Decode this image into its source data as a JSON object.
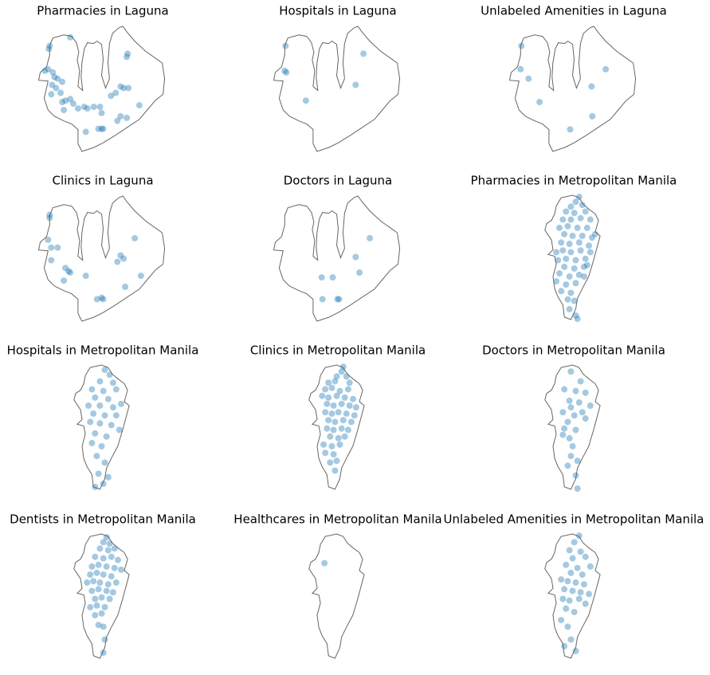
{
  "chart_data": [
    {
      "type": "scatter",
      "title": "Pharmacies in Laguna",
      "color": "#1f77b4",
      "xlim": [
        121.0,
        121.65
      ],
      "ylim": [
        13.92,
        14.55
      ],
      "x": [
        121.162,
        121.059,
        121.055,
        121.449,
        121.445,
        121.035,
        121.051,
        121.075,
        121.083,
        121.099,
        121.122,
        121.071,
        121.091,
        121.067,
        121.114,
        121.138,
        121.162,
        121.177,
        121.122,
        121.13,
        121.201,
        121.232,
        121.248,
        121.28,
        121.319,
        121.24,
        121.303,
        121.319,
        121.327,
        121.414,
        121.429,
        121.453,
        121.39,
        121.366,
        121.508,
        121.414,
        121.445,
        121.398,
        121.311
      ],
      "y": [
        14.491,
        14.448,
        14.433,
        14.409,
        14.393,
        14.323,
        14.331,
        14.315,
        14.292,
        14.284,
        14.268,
        14.253,
        14.237,
        14.206,
        14.213,
        14.174,
        14.182,
        14.159,
        14.167,
        14.127,
        14.135,
        14.143,
        14.135,
        14.143,
        14.112,
        14.018,
        14.033,
        14.033,
        14.033,
        14.245,
        14.237,
        14.237,
        14.213,
        14.198,
        14.151,
        14.096,
        14.088,
        14.073,
        14.143
      ]
    },
    {
      "type": "scatter",
      "title": "Hospitals in Laguna",
      "color": "#1f77b4",
      "xlim": [
        121.0,
        121.65
      ],
      "ylim": [
        13.92,
        14.55
      ],
      "x": [
        121.063,
        121.059,
        121.067,
        121.453,
        121.414,
        121.165
      ],
      "y": [
        14.448,
        14.323,
        14.315,
        14.409,
        14.253,
        14.174
      ]
    },
    {
      "type": "scatter",
      "title": "Unlabeled Amenities in Laguna",
      "color": "#1f77b4",
      "xlim": [
        121.0,
        121.65
      ],
      "ylim": [
        13.92,
        14.55
      ],
      "x": [
        121.063,
        121.059,
        121.099,
        121.485,
        121.414,
        121.154,
        121.418,
        121.307
      ],
      "y": [
        14.448,
        14.331,
        14.284,
        14.331,
        14.245,
        14.167,
        14.096,
        14.03
      ]
    },
    {
      "type": "scatter",
      "title": "Clinics in Laguna",
      "color": "#1f77b4",
      "xlim": [
        121.0,
        121.65
      ],
      "ylim": [
        13.92,
        14.55
      ],
      "x": [
        121.059,
        121.059,
        121.051,
        121.067,
        121.099,
        121.067,
        121.138,
        121.154,
        121.162,
        121.24,
        121.485,
        121.414,
        121.429,
        121.398,
        121.516,
        121.437,
        121.13,
        121.296,
        121.319,
        121.327
      ],
      "y": [
        14.452,
        14.437,
        14.327,
        14.288,
        14.288,
        14.225,
        14.186,
        14.17,
        14.163,
        14.147,
        14.335,
        14.249,
        14.233,
        14.217,
        14.147,
        14.092,
        14.123,
        14.03,
        14.037,
        14.03
      ]
    },
    {
      "type": "scatter",
      "title": "Doctors in Laguna",
      "color": "#1f77b4",
      "xlim": [
        121.0,
        121.65
      ],
      "ylim": [
        13.92,
        14.55
      ],
      "x": [
        121.485,
        121.414,
        121.433,
        121.299,
        121.244,
        121.248,
        121.323,
        121.331
      ],
      "y": [
        14.335,
        14.241,
        14.163,
        14.139,
        14.139,
        14.03,
        14.03,
        14.03
      ]
    },
    {
      "type": "scatter",
      "title": "Pharmacies in Metropolitan Manila",
      "color": "#1f77b4",
      "xlim": [
        120.93,
        121.12
      ],
      "ylim": [
        14.35,
        14.79
      ],
      "x": [
        121.044,
        121.032,
        121.015,
        121.055,
        120.998,
        121.027,
        121.066,
        120.987,
        121.015,
        121.049,
        121.083,
        120.975,
        121.004,
        121.038,
        121.072,
        121.1,
        120.992,
        121.021,
        121.055,
        121.089,
        120.981,
        121.01,
        121.044,
        121.078,
        120.987,
        121.015,
        121.049,
        121.083,
        120.998,
        121.032,
        121.066,
        120.992,
        121.027,
        121.061,
        120.975,
        121.01,
        121.044,
        120.964,
        120.998,
        121.032,
        120.981,
        121.015,
        121.004,
        121.027,
        121.01,
        121.032,
        121.038,
        121.061,
        120.97,
        120.964,
        121.072
      ],
      "y": [
        14.784,
        14.767,
        14.75,
        14.756,
        14.733,
        14.728,
        14.733,
        14.705,
        14.705,
        14.71,
        14.705,
        14.676,
        14.682,
        14.676,
        14.676,
        14.654,
        14.654,
        14.648,
        14.648,
        14.642,
        14.625,
        14.62,
        14.625,
        14.614,
        14.597,
        14.591,
        14.597,
        14.591,
        14.568,
        14.563,
        14.568,
        14.54,
        14.534,
        14.54,
        14.517,
        14.506,
        14.512,
        14.489,
        14.478,
        14.483,
        14.455,
        14.449,
        14.426,
        14.421,
        14.392,
        14.37,
        14.358,
        14.506,
        14.563,
        14.591,
        14.546
      ]
    },
    {
      "type": "scatter",
      "title": "Hospitals in Metropolitan Manila",
      "color": "#1f77b4",
      "xlim": [
        120.93,
        121.12
      ],
      "ylim": [
        14.35,
        14.79
      ],
      "x": [
        121.032,
        121.049,
        121.015,
        121.061,
        120.987,
        121.027,
        121.072,
        120.998,
        121.044,
        120.975,
        121.015,
        121.061,
        121.089,
        120.992,
        121.032,
        121.072,
        120.981,
        121.015,
        121.055,
        121.083,
        120.998,
        121.038,
        120.987,
        121.021,
        121.004,
        121.032,
        121.01,
        121.044,
        121.027,
        120.998
      ],
      "y": [
        14.773,
        14.756,
        14.733,
        14.728,
        14.705,
        14.699,
        14.705,
        14.676,
        14.671,
        14.648,
        14.648,
        14.642,
        14.654,
        14.62,
        14.614,
        14.614,
        14.591,
        14.586,
        14.58,
        14.563,
        14.551,
        14.54,
        14.517,
        14.506,
        14.472,
        14.449,
        14.41,
        14.398,
        14.375,
        14.364
      ]
    },
    {
      "type": "scatter",
      "title": "Clinics in Metropolitan Manila",
      "color": "#1f77b4",
      "xlim": [
        120.93,
        121.12
      ],
      "ylim": [
        14.35,
        14.79
      ],
      "x": [
        121.044,
        121.038,
        121.021,
        121.055,
        120.992,
        121.015,
        121.066,
        120.981,
        121.004,
        121.032,
        121.061,
        120.97,
        120.992,
        121.021,
        121.049,
        121.078,
        120.987,
        121.01,
        121.038,
        121.066,
        121.089,
        120.981,
        121.004,
        121.027,
        121.055,
        121.083,
        120.992,
        121.015,
        121.044,
        121.072,
        120.987,
        121.01,
        121.038,
        121.061,
        120.998,
        121.027,
        121.049,
        120.975,
        121.004,
        121.032,
        120.981,
        121.01,
        120.998,
        121.021,
        121.015
      ],
      "y": [
        14.784,
        14.767,
        14.75,
        14.75,
        14.728,
        14.733,
        14.728,
        14.705,
        14.71,
        14.699,
        14.705,
        14.682,
        14.676,
        14.682,
        14.676,
        14.671,
        14.654,
        14.648,
        14.654,
        14.648,
        14.642,
        14.625,
        14.62,
        14.625,
        14.62,
        14.614,
        14.597,
        14.591,
        14.597,
        14.591,
        14.568,
        14.563,
        14.568,
        14.563,
        14.54,
        14.534,
        14.54,
        14.512,
        14.506,
        14.512,
        14.483,
        14.478,
        14.449,
        14.455,
        14.421
      ]
    },
    {
      "type": "scatter",
      "title": "Doctors in Metropolitan Manila",
      "color": "#1f77b4",
      "xlim": [
        120.93,
        121.12
      ],
      "ylim": [
        14.35,
        14.79
      ],
      "x": [
        121.015,
        121.049,
        120.992,
        121.032,
        121.066,
        121.01,
        121.044,
        121.083,
        121.015,
        120.987,
        121.055,
        121.027,
        121.004,
        121.066,
        120.992,
        121.032,
        120.987,
        121.01,
        121.021,
        121.015,
        121.004,
        121.038,
        121.032,
        121.038
      ],
      "y": [
        14.767,
        14.733,
        14.705,
        14.699,
        14.693,
        14.665,
        14.659,
        14.648,
        14.642,
        14.625,
        14.625,
        14.614,
        14.591,
        14.603,
        14.568,
        14.563,
        14.546,
        14.534,
        14.506,
        14.472,
        14.438,
        14.455,
        14.404,
        14.358
      ]
    },
    {
      "type": "scatter",
      "title": "Dentists in Metropolitan Manila",
      "color": "#1f77b4",
      "xlim": [
        120.93,
        121.12
      ],
      "ylim": [
        14.35,
        14.79
      ],
      "x": [
        121.038,
        121.027,
        121.049,
        121.015,
        121.044,
        121.066,
        120.998,
        121.027,
        121.055,
        121.078,
        120.987,
        121.01,
        121.038,
        121.066,
        121.089,
        120.981,
        121.004,
        121.027,
        121.055,
        120.97,
        120.992,
        121.015,
        121.044,
        121.072,
        120.987,
        121.01,
        121.038,
        121.061,
        120.998,
        121.021,
        121.049,
        120.981,
        121.004,
        121.032,
        120.998,
        121.021,
        121.01,
        121.027,
        121.032,
        121.027
      ],
      "y": [
        14.778,
        14.761,
        14.756,
        14.739,
        14.733,
        14.739,
        14.71,
        14.705,
        14.71,
        14.699,
        14.676,
        14.682,
        14.676,
        14.671,
        14.665,
        14.648,
        14.654,
        14.648,
        14.642,
        14.62,
        14.625,
        14.62,
        14.614,
        14.62,
        14.591,
        14.597,
        14.591,
        14.586,
        14.563,
        14.568,
        14.563,
        14.534,
        14.54,
        14.534,
        14.506,
        14.512,
        14.472,
        14.466,
        14.421,
        14.375
      ]
    },
    {
      "type": "scatter",
      "title": "Healthcares in Metropolitan Manila",
      "color": "#1f77b4",
      "xlim": [
        120.93,
        121.12
      ],
      "ylim": [
        14.35,
        14.79
      ],
      "x": [
        120.978
      ],
      "y": [
        14.688
      ]
    },
    {
      "type": "scatter",
      "title": "Unlabeled Amenities in Metropolitan Manila",
      "color": "#1f77b4",
      "xlim": [
        120.93,
        121.12
      ],
      "ylim": [
        14.35,
        14.79
      ],
      "x": [
        121.044,
        121.027,
        121.01,
        121.049,
        121.021,
        121.066,
        120.998,
        121.038,
        121.083,
        121.015,
        121.055,
        120.981,
        121.004,
        121.032,
        121.061,
        120.992,
        121.021,
        121.049,
        121.078,
        120.987,
        121.01,
        121.044,
        121.066,
        120.998,
        121.027,
        120.981,
        121.004,
        121.015,
        120.992,
        121.032
      ],
      "y": [
        14.784,
        14.761,
        14.733,
        14.728,
        14.705,
        14.71,
        14.682,
        14.671,
        14.676,
        14.654,
        14.648,
        14.631,
        14.625,
        14.62,
        14.614,
        14.597,
        14.591,
        14.586,
        14.58,
        14.563,
        14.557,
        14.563,
        14.546,
        14.529,
        14.517,
        14.489,
        14.466,
        14.421,
        14.398,
        14.381
      ]
    }
  ]
}
